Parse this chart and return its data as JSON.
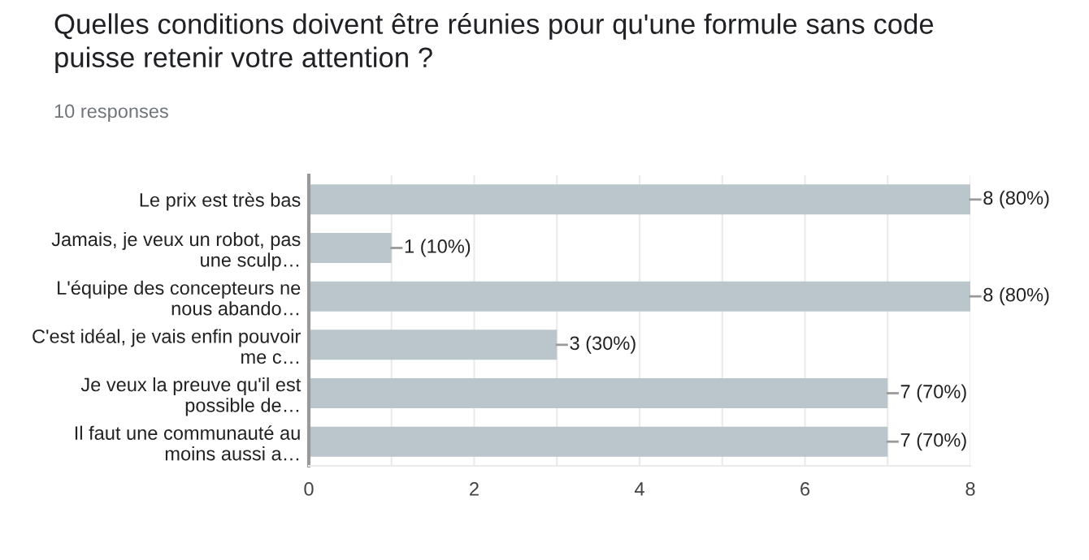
{
  "chart_data": {
    "type": "bar",
    "orientation": "horizontal",
    "title": "Quelles conditions doivent être réunies pour qu'une formule sans code\npuisse retenir votre attention ?",
    "subtitle": "10 responses",
    "categories": [
      "Le prix est très bas",
      "Jamais, je veux un robot, pas\nune sculp…",
      "L'équipe des concepteurs ne\nnous abando…",
      "C'est idéal, je vais enfin pouvoir\nme c…",
      "Je veux la preuve qu'il est\npossible de…",
      "Il faut une communauté au\nmoins aussi a…"
    ],
    "values": [
      8,
      1,
      8,
      3,
      7,
      7
    ],
    "value_labels": [
      "8 (80%)",
      "1 (10%)",
      "8 (80%)",
      "3 (30%)",
      "7 (70%)",
      "7 (70%)"
    ],
    "color": "#bac6cc",
    "xlim": [
      0,
      8
    ],
    "xticks": [
      0,
      {
        "value": 1,
        "label": null
      },
      2,
      {
        "value": 3,
        "label": null
      },
      4,
      {
        "value": 5,
        "label": null
      },
      6,
      {
        "value": 7,
        "label": null
      },
      8
    ],
    "grid": "x",
    "legend": false
  }
}
